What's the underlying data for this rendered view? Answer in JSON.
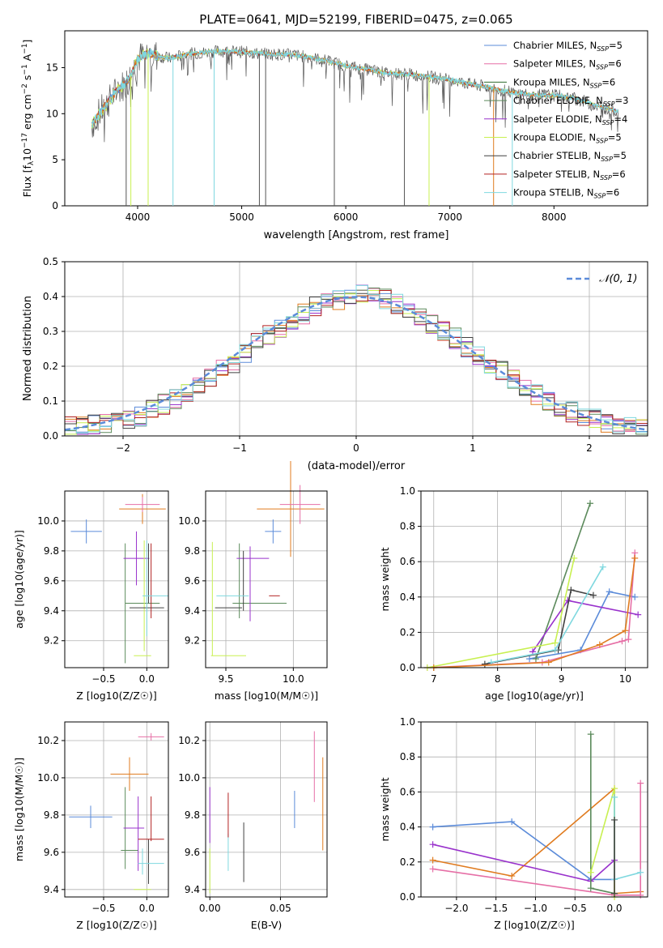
{
  "figure": {
    "title": "PLATE=0641, MJD=52199, FIBERID=0475, z=0.065"
  },
  "colors": {
    "chabrier_miles": "#5b8bd9",
    "salpeter_miles": "#e66fa6",
    "kroupa_miles": "#2e6b2e",
    "chabrier_elodie": "#5b8a5b",
    "salpeter_elodie": "#9932cc",
    "kroupa_elodie": "#c8f050",
    "chabrier_stelib": "#404040",
    "salpeter_stelib": "#b22222",
    "kroupa_stelib": "#7fd8df",
    "orange": "#e07b1f",
    "data": "#555555",
    "normal": "#5b8bd9"
  },
  "chart_data": [
    {
      "type": "line",
      "panel": "spectrum",
      "xlabel": "wavelength [Angstrom, rest frame]",
      "ylabel": "Flux [f_λ10^-17 erg cm^-2 s^-1 A^-1]",
      "xlim": [
        3300,
        8900
      ],
      "ylim": [
        0,
        19
      ],
      "xticks": [
        "4000",
        "5000",
        "6000",
        "7000",
        "8000"
      ],
      "yticks": [
        "0",
        "5",
        "10",
        "15"
      ],
      "grid": false,
      "legend": "top-right",
      "legend_entries": [
        "Chabrier MILES, N_SSP=5",
        "Salpeter MILES, N_SSP=6",
        "Kroupa MILES, N_SSP=6",
        "Chabrier ELODIE, N_SSP=3",
        "Salpeter ELODIE, N_SSP=4",
        "Kroupa ELODIE, N_SSP=5",
        "Chabrier STELIB, N_SSP=5",
        "Salpeter STELIB, N_SSP=6",
        "Kroupa STELIB, N_SSP=6"
      ],
      "continuum": {
        "x": [
          3550,
          3600,
          3700,
          3800,
          3900,
          3950,
          4000,
          4100,
          4300,
          4500,
          4800,
          5000,
          5200,
          5500,
          5800,
          6000,
          6200,
          6400,
          6600,
          6800,
          7000,
          7200,
          7400,
          7600,
          7800,
          8000,
          8200,
          8400,
          8600
        ],
        "y": [
          8.5,
          9.5,
          11.0,
          12.5,
          13.5,
          14.5,
          16.0,
          16.5,
          16.0,
          16.5,
          16.8,
          16.7,
          16.5,
          16.4,
          15.8,
          15.2,
          14.8,
          14.4,
          14.3,
          14.0,
          13.7,
          13.2,
          12.8,
          12.3,
          12.0,
          12.0,
          11.7,
          10.9,
          10.3
        ]
      },
      "absorption_spikes_x": [
        3890,
        3935,
        4101,
        4340,
        4735,
        5170,
        5230,
        5890,
        6563,
        6800,
        7420,
        7600
      ]
    },
    {
      "type": "bar",
      "panel": "residual histogram",
      "xlabel": "(data-model)/error",
      "ylabel": "Normed distribution",
      "xlim": [
        -2.5,
        2.5
      ],
      "ylim": [
        0,
        0.5
      ],
      "xticks": [
        "−2",
        "−1",
        "0",
        "1",
        "2"
      ],
      "yticks": [
        "0.0",
        "0.1",
        "0.2",
        "0.3",
        "0.4",
        "0.5"
      ],
      "grid": true,
      "legend": "top-right",
      "legend_label": "𝒩(0, 1)",
      "bin_width": 0.1,
      "bin_start": -2.5,
      "series": [
        {
          "values": [
            0.025,
            0.028,
            0.032,
            0.035,
            0.04,
            0.045,
            0.055,
            0.075,
            0.09,
            0.105,
            0.12,
            0.14,
            0.165,
            0.19,
            0.21,
            0.24,
            0.27,
            0.29,
            0.31,
            0.33,
            0.35,
            0.37,
            0.38,
            0.39,
            0.4,
            0.41,
            0.4,
            0.395,
            0.38,
            0.36,
            0.34,
            0.32,
            0.3,
            0.28,
            0.255,
            0.235,
            0.21,
            0.19,
            0.165,
            0.14,
            0.12,
            0.1,
            0.085,
            0.07,
            0.058,
            0.048,
            0.04,
            0.033,
            0.028,
            0.023
          ]
        }
      ]
    },
    {
      "type": "scatter",
      "panel": "age vs Z",
      "xlabel": "Z [log10(Z/Z☉)]",
      "ylabel": "age  [log10(age/yr)]",
      "xlim": [
        -0.95,
        0.25
      ],
      "ylim": [
        9.02,
        10.2
      ],
      "xticks": [
        "−0.5",
        "0.0"
      ],
      "yticks": [
        "9.2",
        "9.4",
        "9.6",
        "9.8",
        "10.0"
      ]
    },
    {
      "type": "scatter",
      "panel": "age vs mass",
      "xlabel": "mass [log10(M/M☉)]",
      "ylabel": "",
      "xlim": [
        9.35,
        10.25
      ],
      "ylim": [
        9.02,
        10.2
      ],
      "xticks": [
        "9.5",
        "10.0"
      ],
      "yticks": [
        "9.2",
        "9.4",
        "9.6",
        "9.8",
        "10.0"
      ]
    },
    {
      "type": "line",
      "panel": "mass weight vs age",
      "xlabel": "age  [log10(age/yr)]",
      "ylabel": "mass weight",
      "xlim": [
        6.8,
        10.35
      ],
      "ylim": [
        0,
        1
      ],
      "xticks": [
        "7",
        "8",
        "9",
        "10"
      ],
      "yticks": [
        "0.0",
        "0.2",
        "0.4",
        "0.6",
        "0.8",
        "1.0"
      ],
      "grid": true,
      "series": [
        {
          "color": "chabrier_miles",
          "x": [
            8.5,
            9.3,
            9.75,
            10.15
          ],
          "y": [
            0.05,
            0.1,
            0.43,
            0.4
          ]
        },
        {
          "color": "salpeter_miles",
          "x": [
            6.9,
            8.7,
            9.95,
            10.05,
            10.15
          ],
          "y": [
            0.0,
            0.03,
            0.15,
            0.16,
            0.65
          ]
        },
        {
          "color": "chabrier_elodie",
          "x": [
            8.6,
            9.45
          ],
          "y": [
            0.05,
            0.93
          ]
        },
        {
          "color": "salpeter_elodie",
          "x": [
            8.55,
            9.1,
            10.2
          ],
          "y": [
            0.09,
            0.38,
            0.3
          ]
        },
        {
          "color": "kroupa_elodie",
          "x": [
            6.9,
            8.9,
            9.2
          ],
          "y": [
            0.0,
            0.14,
            0.62
          ]
        },
        {
          "color": "chabrier_stelib",
          "x": [
            7.8,
            8.95,
            9.15,
            9.5
          ],
          "y": [
            0.02,
            0.1,
            0.44,
            0.41
          ]
        },
        {
          "color": "kroupa_stelib",
          "x": [
            7.9,
            8.9,
            9.65
          ],
          "y": [
            0.03,
            0.1,
            0.57
          ]
        },
        {
          "color": "orange",
          "x": [
            7.0,
            8.8,
            9.6,
            10.0,
            10.15
          ],
          "y": [
            0.0,
            0.03,
            0.13,
            0.21,
            0.62
          ]
        }
      ]
    },
    {
      "type": "scatter",
      "panel": "mass vs Z",
      "xlabel": "Z [log10(Z/Z☉)]",
      "ylabel": "mass [log10(M/M☉)]",
      "xlim": [
        -0.95,
        0.25
      ],
      "ylim": [
        9.36,
        10.3
      ],
      "xticks": [
        "−0.5",
        "0.0"
      ],
      "yticks": [
        "9.4",
        "9.6",
        "9.8",
        "10.0",
        "10.2"
      ]
    },
    {
      "type": "scatter",
      "panel": "mass vs extinction",
      "xlabel": "E(B-V)",
      "ylabel": "",
      "xlim": [
        -0.003,
        0.083
      ],
      "ylim": [
        9.36,
        10.3
      ],
      "xticks": [
        "0.00",
        "0.05"
      ],
      "yticks": [
        "9.4",
        "9.6",
        "9.8",
        "10.0",
        "10.2"
      ]
    },
    {
      "type": "line",
      "panel": "mass weight vs Z",
      "xlabel": "Z [log10(Z/Z☉)]",
      "ylabel": "mass weight",
      "xlim": [
        -2.45,
        0.42
      ],
      "ylim": [
        0,
        1
      ],
      "xticks": [
        "−2.0",
        "−1.5",
        "−1.0",
        "−0.5",
        "0.0"
      ],
      "yticks": [
        "0.0",
        "0.2",
        "0.4",
        "0.6",
        "0.8",
        "1.0"
      ],
      "grid": true,
      "series": [
        {
          "color": "chabrier_miles",
          "x": [
            -2.3,
            -1.3,
            -0.3,
            0.0
          ],
          "y": [
            0.4,
            0.43,
            0.1,
            0.1
          ]
        },
        {
          "color": "orange",
          "x": [
            -2.3,
            -1.3,
            0.0,
            0.0,
            0.33
          ],
          "y": [
            0.21,
            0.12,
            0.62,
            0.02,
            0.03
          ]
        },
        {
          "color": "salpeter_elodie",
          "x": [
            -2.3,
            -0.3,
            0.0
          ],
          "y": [
            0.3,
            0.09,
            0.21
          ]
        },
        {
          "color": "salpeter_miles",
          "x": [
            -2.3,
            0.0,
            0.33,
            0.33
          ],
          "y": [
            0.16,
            0.01,
            0.01,
            0.65
          ]
        },
        {
          "color": "chabrier_elodie",
          "x": [
            -0.3,
            -0.3,
            0.0
          ],
          "y": [
            0.93,
            0.05,
            0.02
          ]
        },
        {
          "color": "kroupa_elodie",
          "x": [
            -0.3,
            0.0,
            0.0
          ],
          "y": [
            0.14,
            0.62,
            0.0
          ]
        },
        {
          "color": "kroupa_stelib",
          "x": [
            0.0,
            0.0,
            0.33
          ],
          "y": [
            0.57,
            0.1,
            0.14
          ]
        },
        {
          "color": "chabrier_stelib",
          "x": [
            0.0,
            0.0
          ],
          "y": [
            0.44,
            0.02
          ]
        }
      ]
    }
  ]
}
